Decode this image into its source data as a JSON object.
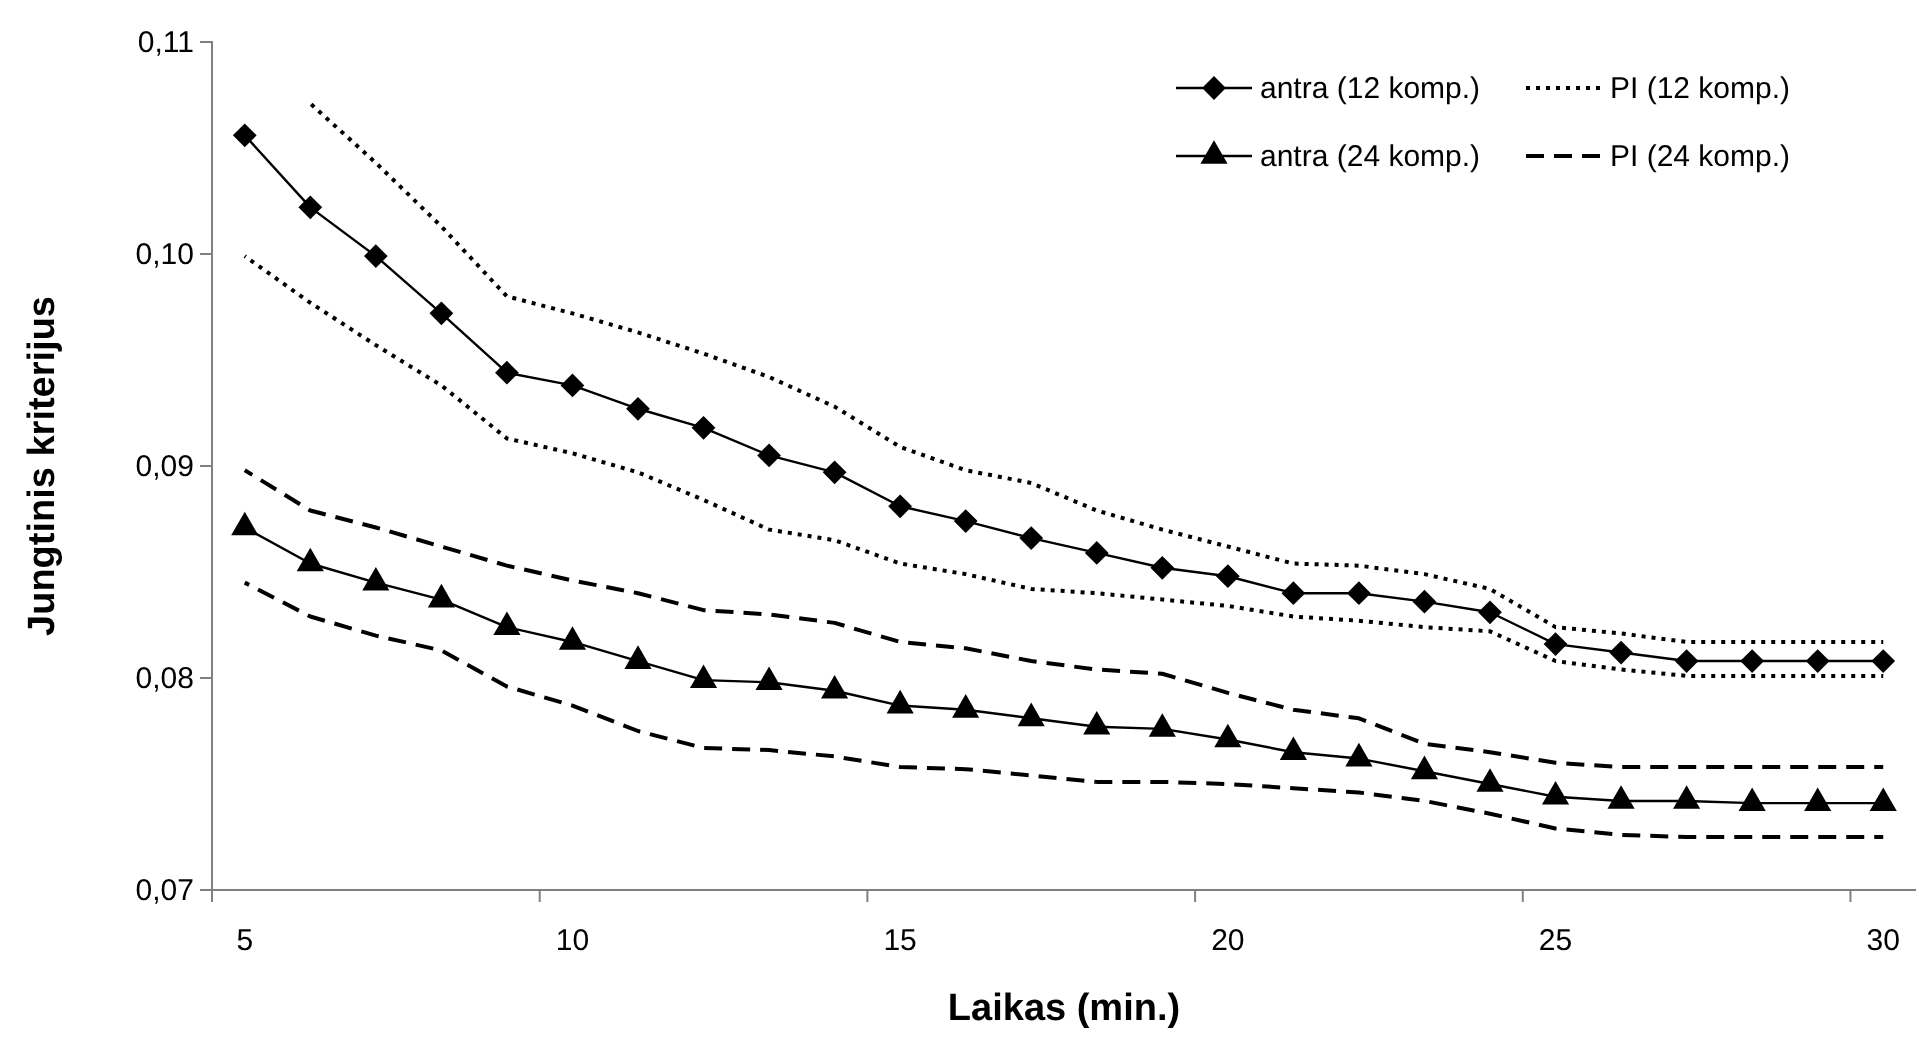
{
  "chart_data": {
    "type": "line",
    "xlabel": "Laikas (min.)",
    "ylabel": "Jungtinis kriterijus",
    "categories": [
      "5",
      null,
      null,
      null,
      null,
      "10",
      null,
      null,
      null,
      null,
      "15",
      null,
      null,
      null,
      null,
      "20",
      null,
      null,
      null,
      null,
      "25",
      null,
      null,
      null,
      null,
      "30"
    ],
    "ylim": [
      0.07,
      0.11
    ],
    "yticks": [
      {
        "value": 0.07,
        "label": "0,07"
      },
      {
        "value": 0.08,
        "label": "0,08"
      },
      {
        "value": 0.09,
        "label": "0,09"
      },
      {
        "value": 0.1,
        "label": "0,10"
      },
      {
        "value": 0.11,
        "label": "0,11"
      }
    ],
    "grid": false,
    "legend": "top right",
    "series": [
      {
        "name": "antra (12 komp.)",
        "color": "#000000",
        "marker": "diamond",
        "line_style": "solid",
        "values": [
          0.1056,
          0.1022,
          0.0999,
          0.0972,
          0.0944,
          0.0938,
          0.0927,
          0.0918,
          0.0905,
          0.0897,
          0.0881,
          0.0874,
          0.0866,
          0.0859,
          0.0852,
          0.0848,
          0.084,
          0.084,
          0.0836,
          0.0831,
          0.0816,
          0.0812,
          0.0808,
          0.0808,
          0.0808,
          0.0808
        ]
      },
      {
        "name": "PI (12 komp.)",
        "color": "#000000",
        "marker": "none",
        "line_style": "dotted",
        "values": [
          null,
          0.1071,
          0.1043,
          0.1013,
          0.098,
          0.0972,
          0.0963,
          0.0953,
          0.0942,
          0.0928,
          0.0909,
          0.0898,
          0.0892,
          0.0879,
          0.087,
          0.0862,
          0.0854,
          0.0853,
          0.0849,
          0.0842,
          0.0824,
          0.0821,
          0.0817,
          0.0817,
          0.0817,
          0.0817
        ]
      },
      {
        "name": "antra (24 komp.)",
        "color": "#000000",
        "marker": "triangle",
        "line_style": "solid",
        "values": [
          0.0871,
          0.0854,
          0.0845,
          0.0837,
          0.0824,
          0.0817,
          0.0808,
          0.0799,
          0.0798,
          0.0794,
          0.0787,
          0.0785,
          0.0781,
          0.0777,
          0.0776,
          0.0771,
          0.0765,
          0.0762,
          0.0756,
          0.075,
          0.0744,
          0.0742,
          0.0742,
          0.0741,
          0.0741,
          0.0741
        ]
      },
      {
        "name": "PI (24 komp.)",
        "color": "#000000",
        "marker": "none",
        "line_style": "dashed",
        "values": [
          0.0898,
          0.0879,
          0.0871,
          0.0862,
          0.0853,
          0.0846,
          0.084,
          0.0832,
          0.083,
          0.0826,
          0.0817,
          0.0814,
          0.0808,
          0.0804,
          0.0802,
          0.0793,
          0.0785,
          0.0781,
          0.0769,
          0.0765,
          0.076,
          0.0758,
          0.0758,
          0.0758,
          0.0758,
          0.0758
        ]
      },
      {
        "color": "#000000",
        "marker": "none",
        "line_style": "dotted",
        "values": [
          0.0999,
          0.0977,
          0.0957,
          0.0938,
          0.0913,
          0.0906,
          0.0897,
          0.0884,
          0.087,
          0.0865,
          0.0854,
          0.0849,
          0.0842,
          0.084,
          0.0837,
          0.0834,
          0.0829,
          0.0827,
          0.0824,
          0.0822,
          0.0808,
          0.0804,
          0.0801,
          0.0801,
          0.0801,
          0.0801
        ]
      },
      {
        "color": "#000000",
        "marker": "none",
        "line_style": "dashed",
        "values": [
          0.0845,
          0.0829,
          0.082,
          0.0813,
          0.0796,
          0.0787,
          0.0775,
          0.0767,
          0.0766,
          0.0763,
          0.0758,
          0.0757,
          0.0754,
          0.0751,
          0.0751,
          0.075,
          0.0748,
          0.0746,
          0.0742,
          0.0736,
          0.0729,
          0.0726,
          0.0725,
          0.0725,
          0.0725,
          0.0725
        ]
      }
    ]
  }
}
